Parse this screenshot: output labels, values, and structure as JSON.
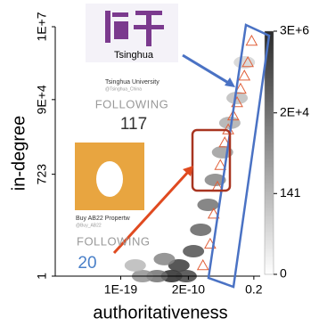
{
  "chart_data": {
    "type": "scatter",
    "x_label": "authoritativeness",
    "y_label": "in-degree",
    "x_scale": "log",
    "y_scale": "log",
    "xlim": [
      1e-28,
      1.5
    ],
    "ylim": [
      1,
      10000000
    ],
    "xticks": [
      {
        "value": 1e-19,
        "label": "1E-19"
      },
      {
        "value": 2e-10,
        "label": "2E-10"
      },
      0.2
    ],
    "yticks": [
      1,
      723,
      {
        "value": 90000,
        "label": "9E+4"
      },
      {
        "value": 10000000,
        "label": "1E+7"
      }
    ],
    "series": [
      {
        "color": "#e0603a",
        "marker": "triangle",
        "x": [
          2e-08,
          2e-07,
          6e-07,
          2e-06,
          5e-06,
          2e-05,
          6e-05,
          0.0003,
          0.001,
          0.003,
          0.01,
          0.03,
          0.1
        ],
        "y": [
          2,
          8,
          56,
          320,
          1300,
          5600,
          13000,
          32000,
          75000,
          180000,
          420000,
          1000000,
          4000000
        ]
      }
    ],
    "density": {
      "x": [
        1e-12,
        1e-11,
        1e-10,
        1e-14,
        1e-16,
        1e-17,
        1e-13,
        1e-09,
        1e-08,
        1e-07,
        1e-06,
        1e-05,
        0.0001,
        0.001,
        0.01
      ],
      "y": [
        1,
        2,
        1,
        1,
        1,
        2,
        3,
        5,
        20,
        100,
        500,
        3000,
        20000,
        100000,
        1000000
      ],
      "counts": [
        3000000,
        1000000,
        500000,
        20000,
        2000,
        141,
        5000,
        200000,
        50000,
        20000,
        5000,
        1000,
        300,
        100,
        20
      ]
    },
    "colorbar": {
      "scale": "log",
      "clim": [
        0,
        3000000
      ],
      "ticks": [
        0,
        141,
        {
          "value": 20000,
          "label": "2E+4"
        },
        {
          "value": 3000000,
          "label": "3E+6"
        }
      ],
      "colors": [
        "#ffffff",
        "#2a2a2a"
      ]
    }
  },
  "insets": [
    {
      "name": "Tsinghua",
      "full_name": "Tsinghua University",
      "handle": "@Tsinghua_China",
      "following_label": "FOLLOWING",
      "following": 117
    },
    {
      "full_name": "Buy AB22 Propertw",
      "handle": "@Buy_AB22",
      "following_label": "FOLLOWING",
      "following": 20
    }
  ]
}
